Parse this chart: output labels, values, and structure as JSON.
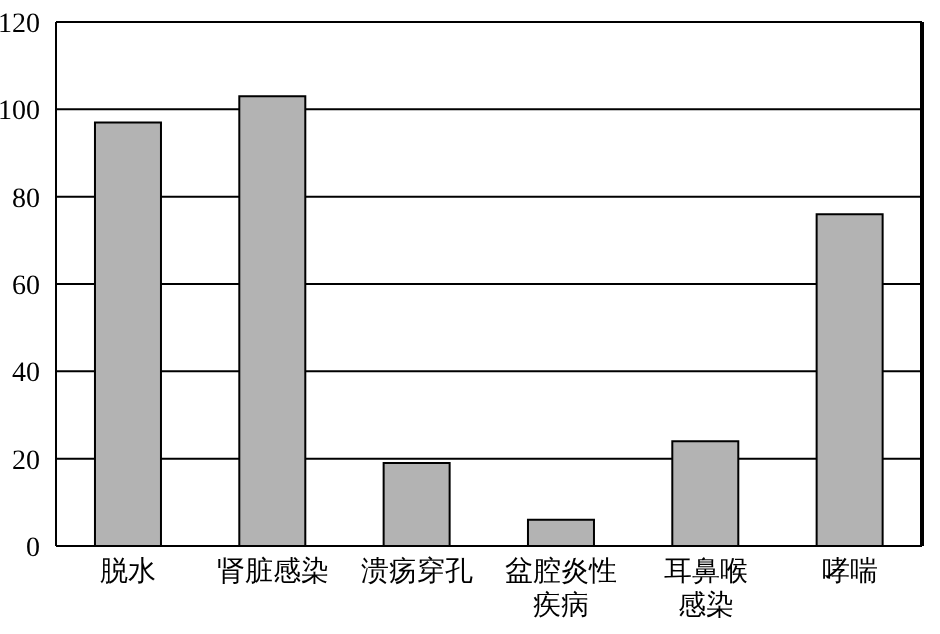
{
  "chart_data": {
    "type": "bar",
    "categories": [
      "脱水",
      "肾脏感染",
      "溃疡穿孔",
      "盆腔炎性疾病",
      "耳鼻喉感染",
      "哮喘"
    ],
    "values": [
      97,
      103,
      19,
      6,
      24,
      76
    ],
    "color": "#b3b3b3",
    "ylim": [
      0,
      120
    ],
    "yticks": [
      0,
      20,
      40,
      60,
      80,
      100,
      120
    ],
    "grid": "y"
  }
}
